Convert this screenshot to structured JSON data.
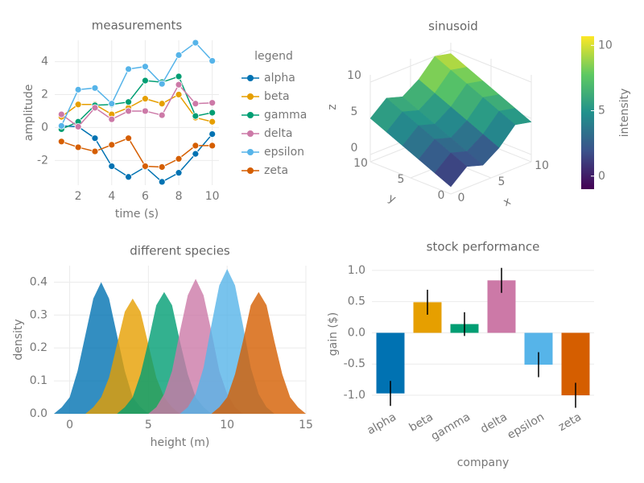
{
  "chart_data": [
    {
      "type": "line",
      "title": "measurements",
      "xlabel": "time (s)",
      "ylabel": "amplitude",
      "x": [
        1,
        2,
        3,
        4,
        5,
        6,
        7,
        8,
        9,
        10
      ],
      "series": [
        {
          "name": "alpha",
          "color": "#0072b2",
          "values": [
            0.1,
            0.05,
            -0.65,
            -2.35,
            -3.0,
            -2.4,
            -3.3,
            -2.75,
            -1.6,
            -0.4
          ]
        },
        {
          "name": "beta",
          "color": "#e69f00",
          "values": [
            0.65,
            1.4,
            1.4,
            0.8,
            1.2,
            1.75,
            1.45,
            2.0,
            0.6,
            0.35
          ]
        },
        {
          "name": "gamma",
          "color": "#009e73",
          "values": [
            -0.1,
            0.35,
            1.35,
            1.4,
            1.55,
            2.85,
            2.75,
            3.1,
            0.7,
            0.9
          ]
        },
        {
          "name": "delta",
          "color": "#cc79a7",
          "values": [
            0.8,
            0.05,
            1.2,
            0.5,
            1.0,
            1.0,
            0.75,
            2.6,
            1.45,
            1.5
          ]
        },
        {
          "name": "epsilon",
          "color": "#56b4e9",
          "values": [
            0.1,
            2.3,
            2.4,
            1.45,
            3.55,
            3.7,
            2.65,
            4.4,
            5.15,
            4.05
          ]
        },
        {
          "name": "zeta",
          "color": "#d55e00",
          "values": [
            -0.85,
            -1.2,
            -1.45,
            -1.05,
            -0.65,
            -2.35,
            -2.4,
            -1.9,
            -1.1,
            -1.1
          ]
        }
      ],
      "xlim": [
        0.6,
        10.4
      ],
      "ylim": [
        -3.5,
        5.3
      ],
      "xticks": [
        2,
        4,
        6,
        8,
        10
      ],
      "yticks": [
        -2,
        0,
        2,
        4
      ],
      "grid": true,
      "legend_title": "legend",
      "legend": "outer right"
    },
    {
      "type": "surface",
      "title": "sinusoid",
      "xlabel": "x",
      "ylabel": "y",
      "zlabel": "z",
      "x": [
        0,
        2,
        4,
        6,
        8,
        10
      ],
      "y": [
        0,
        2,
        4,
        6,
        8,
        10
      ],
      "z": [
        [
          0,
          1.9,
          1.2,
          2.7,
          5.0,
          4.5
        ],
        [
          1.0,
          2.9,
          2.2,
          3.7,
          6.0,
          5.5
        ],
        [
          2.0,
          3.9,
          3.2,
          4.7,
          7.0,
          6.5
        ],
        [
          3.0,
          4.9,
          4.2,
          5.7,
          8.0,
          7.5
        ],
        [
          4.0,
          5.9,
          5.2,
          6.7,
          9.0,
          8.5
        ],
        [
          5.0,
          6.9,
          6.2,
          7.7,
          10.0,
          9.5
        ]
      ],
      "xlim": [
        0,
        10
      ],
      "ylim": [
        0,
        10
      ],
      "zlim": [
        -1,
        11
      ],
      "xticks": [
        0,
        5,
        10
      ],
      "yticks": [
        0,
        5,
        10
      ],
      "zticks": [
        0,
        5,
        10
      ],
      "colormap": "viridis",
      "clim": [
        -1,
        10.7
      ],
      "colorbar_ticks": [
        0,
        5,
        10
      ],
      "colorbar_label": "intensity"
    },
    {
      "type": "density",
      "title": "different species",
      "xlabel": "height (m)",
      "ylabel": "density",
      "series": [
        {
          "color": "#0072b2",
          "x": [
            -1.5,
            -1,
            -0.5,
            0,
            0.5,
            1,
            1.5,
            2,
            2.5,
            3,
            3.5,
            4,
            4.5,
            5,
            5.5
          ],
          "values": [
            0.0,
            0.0,
            0.02,
            0.05,
            0.13,
            0.24,
            0.35,
            0.4,
            0.35,
            0.24,
            0.13,
            0.05,
            0.02,
            0.0,
            0.0
          ]
        },
        {
          "color": "#e69f00",
          "x": [
            0.5,
            1,
            1.5,
            2,
            2.5,
            3,
            3.5,
            4,
            4.5,
            5,
            5.5,
            6,
            6.5,
            7,
            7.5
          ],
          "values": [
            0.0,
            0.0,
            0.02,
            0.05,
            0.11,
            0.21,
            0.31,
            0.35,
            0.31,
            0.21,
            0.11,
            0.05,
            0.02,
            0.0,
            0.0
          ]
        },
        {
          "color": "#009e73",
          "x": [
            2.5,
            3,
            3.5,
            4,
            4.5,
            5,
            5.5,
            6,
            6.5,
            7,
            7.5,
            8,
            8.5,
            9,
            9.5
          ],
          "values": [
            0.0,
            0.0,
            0.02,
            0.05,
            0.12,
            0.22,
            0.33,
            0.37,
            0.33,
            0.22,
            0.12,
            0.05,
            0.02,
            0.0,
            0.0
          ]
        },
        {
          "color": "#cc79a7",
          "x": [
            4.5,
            5,
            5.5,
            6,
            6.5,
            7,
            7.5,
            8,
            8.5,
            9,
            9.5,
            10,
            10.5,
            11,
            11.5
          ],
          "values": [
            0.0,
            0.0,
            0.02,
            0.06,
            0.13,
            0.25,
            0.36,
            0.41,
            0.36,
            0.25,
            0.13,
            0.06,
            0.02,
            0.0,
            0.0
          ]
        },
        {
          "color": "#56b4e9",
          "x": [
            6.5,
            7,
            7.5,
            8,
            8.5,
            9,
            9.5,
            10,
            10.5,
            11,
            11.5,
            12,
            12.5,
            13,
            13.5
          ],
          "values": [
            0.0,
            0.0,
            0.02,
            0.06,
            0.14,
            0.27,
            0.39,
            0.44,
            0.39,
            0.27,
            0.14,
            0.06,
            0.02,
            0.0,
            0.0
          ]
        },
        {
          "color": "#d55e00",
          "x": [
            8.5,
            9,
            9.5,
            10,
            10.5,
            11,
            11.5,
            12,
            12.5,
            13,
            13.5,
            14,
            14.5,
            15,
            15.5
          ],
          "values": [
            0.0,
            0.0,
            0.02,
            0.05,
            0.12,
            0.22,
            0.33,
            0.37,
            0.33,
            0.22,
            0.12,
            0.05,
            0.02,
            0.0,
            0.0
          ]
        }
      ],
      "xlim": [
        -1,
        15
      ],
      "ylim": [
        0,
        0.45
      ],
      "xticks": [
        0,
        5,
        10,
        15
      ],
      "yticks": [
        {
          "value": 0,
          "label": "0.0"
        },
        0.1,
        0.2,
        0.3,
        0.4
      ],
      "grid": true
    },
    {
      "type": "bar",
      "title": "stock performance",
      "xlabel": "company",
      "ylabel": "gain ($)",
      "categories": [
        "alpha",
        "beta",
        "gamma",
        "delta",
        "epsilon",
        "zeta"
      ],
      "values": [
        -0.97,
        0.49,
        0.14,
        0.84,
        -0.51,
        -1.0
      ],
      "errors": [
        0.2,
        0.2,
        0.19,
        0.2,
        0.2,
        0.2
      ],
      "colors": [
        "#0072b2",
        "#e69f00",
        "#009e73",
        "#cc79a7",
        "#56b4e9",
        "#d55e00"
      ],
      "ylim": [
        -1.18,
        1.14
      ],
      "yticks": [
        {
          "value": -1,
          "label": "-1.0"
        },
        -0.5,
        {
          "value": 0,
          "label": "0.0"
        },
        0.5,
        {
          "value": 1,
          "label": "1.0"
        }
      ],
      "grid": true
    }
  ]
}
